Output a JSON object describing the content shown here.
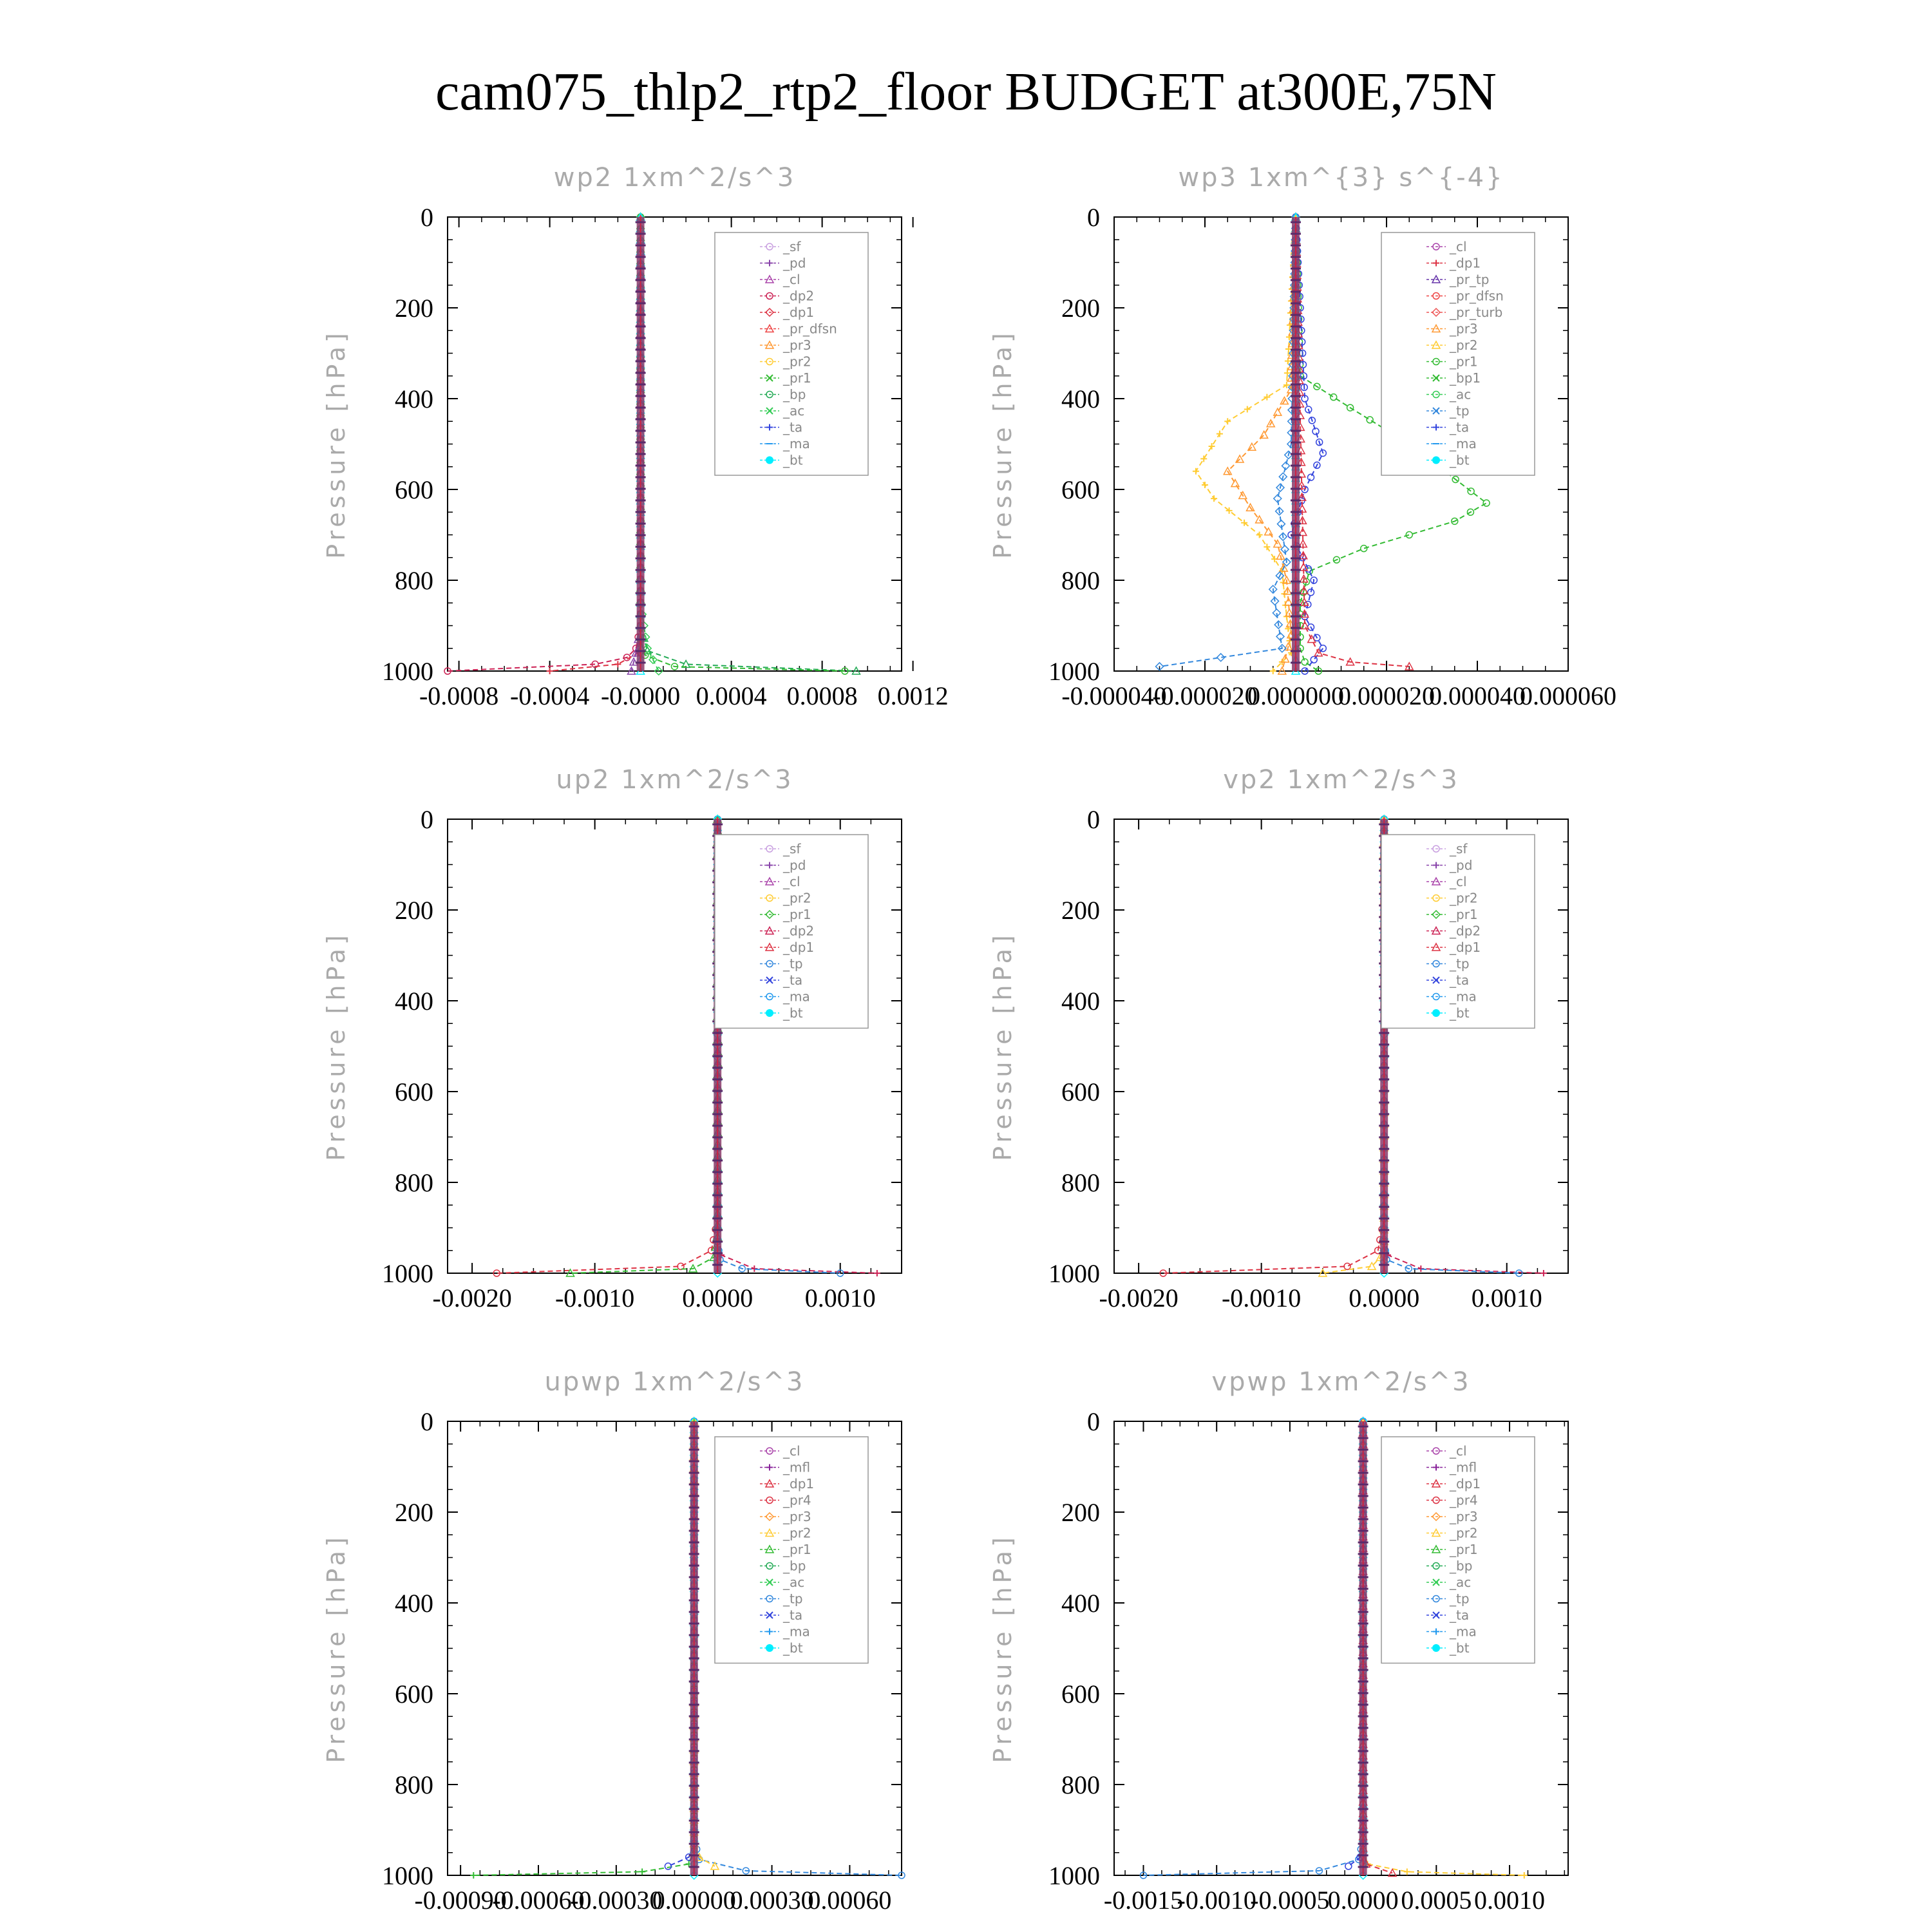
{
  "figure_title": "cam075_thlp2_rtp2_floor  BUDGET at300E,75N",
  "colors": {
    "_sf": "#c9a0e0",
    "_pd": "#8844aa",
    "_cl": "#aa44aa",
    "_dp2": "#cc2255",
    "_dp1": "#dd3344",
    "_pr_dfsn": "#ee4444",
    "_pr_tp": "#6633aa",
    "_pr_turb": "#ee5555",
    "_pr4": "#dd3344",
    "_pr3": "#ff9933",
    "_pr2": "#ffcc33",
    "_pr1": "#33bb33",
    "_bp": "#22aa55",
    "_bp1": "#33bb33",
    "_ac": "#33cc55",
    "_tp": "#3388dd",
    "_ta": "#3344dd",
    "_ma": "#2299ee",
    "_bt": "#00eeff",
    "_mfl": "#882299"
  },
  "chart_data": [
    {
      "type": "line",
      "title": "wp2  1xm^2/s^3",
      "ylabel": "Pressure [hPa]",
      "ylim": [
        1000,
        0
      ],
      "yticks": [
        0,
        200,
        400,
        600,
        800,
        1000
      ],
      "xlim": [
        -0.00085,
        0.00115
      ],
      "xticks": [
        -0.0008,
        -0.0004,
        0.0,
        0.0004,
        0.0008,
        0.0012
      ],
      "xtick_labels": [
        "-0.0008",
        "-0.0004",
        "-0.0000",
        "0.0004",
        "0.0008",
        "0.0012"
      ],
      "legend": [
        "_sf",
        "_pd",
        "_cl",
        "_dp2",
        "_dp1",
        "_pr_dfsn",
        "_pr3",
        "_pr2",
        "_pr1",
        "_bp",
        "_ac",
        "_ta",
        "_ma",
        "_bt"
      ],
      "series": [
        {
          "name": "_dp2",
          "x": [
            0,
            0,
            -2e-05,
            -6e-05,
            -0.0002,
            -0.00085
          ],
          "y": [
            0,
            900,
            950,
            970,
            985,
            1000
          ]
        },
        {
          "name": "_dp1",
          "x": [
            0,
            0,
            -1e-05,
            -0.0001,
            -0.0004
          ],
          "y": [
            0,
            920,
            960,
            985,
            1000
          ]
        },
        {
          "name": "_bp",
          "x": [
            0,
            0,
            3e-05,
            0.0002,
            0.00095
          ],
          "y": [
            0,
            900,
            955,
            985,
            1000
          ]
        },
        {
          "name": "_pr1",
          "x": [
            0,
            0,
            2e-05,
            0.00015,
            0.0009
          ],
          "y": [
            0,
            930,
            965,
            990,
            1000
          ]
        },
        {
          "name": "_ac",
          "x": [
            0,
            0,
            3e-05,
            8e-05
          ],
          "y": [
            0,
            850,
            950,
            1000
          ]
        },
        {
          "name": "_pd",
          "x": [
            0,
            0,
            -2e-05,
            -4e-05
          ],
          "y": [
            0,
            900,
            960,
            1000
          ]
        },
        {
          "name": "_bt",
          "x": [
            0,
            0,
            0
          ],
          "y": [
            0,
            500,
            1000
          ]
        }
      ]
    },
    {
      "type": "line",
      "title": "wp3  1xm^{3} s^{-4}",
      "ylabel": "Pressure [hPa]",
      "ylim": [
        1000,
        0
      ],
      "yticks": [
        0,
        200,
        400,
        600,
        800,
        1000
      ],
      "xlim": [
        -4e-05,
        6e-05
      ],
      "xticks": [
        -4e-05,
        -2e-05,
        0.0,
        2e-05,
        4e-05,
        6e-05
      ],
      "xtick_labels": [
        "-0.000040",
        "-0.000020",
        "0.000000",
        "0.000020",
        "0.000040",
        "0.000060"
      ],
      "legend": [
        "_cl",
        "_dp1",
        "_pr_tp",
        "_pr_dfsn",
        "_pr_turb",
        "_pr3",
        "_pr2",
        "_pr1",
        "_bp1",
        "_ac",
        "_tp",
        "_ta",
        "_ma",
        "_bt"
      ],
      "series": [
        {
          "name": "_bp1",
          "x": [
            0,
            1e-06,
            1.2e-05,
            2.5e-05,
            4.2e-05,
            3.5e-05,
            1.5e-05,
            3e-06,
            1e-06,
            1e-06,
            2e-06,
            5e-06
          ],
          "y": [
            0,
            350,
            420,
            500,
            630,
            670,
            730,
            780,
            850,
            950,
            980,
            1000
          ]
        },
        {
          "name": "_pr2",
          "x": [
            0,
            -2e-06,
            -1.5e-05,
            -2.2e-05,
            -1.8e-05,
            -8e-06,
            -3e-06,
            -2e-06,
            -1e-06,
            -5e-06
          ],
          "y": [
            0,
            370,
            450,
            560,
            620,
            700,
            780,
            880,
            960,
            1000
          ]
        },
        {
          "name": "_pr3",
          "x": [
            0,
            -1e-06,
            -7e-06,
            -1.5e-05,
            -1e-05,
            -4e-06,
            -2e-06,
            -1e-06,
            -3e-06
          ],
          "y": [
            0,
            380,
            480,
            560,
            640,
            720,
            800,
            920,
            1000
          ]
        },
        {
          "name": "_ta",
          "x": [
            0,
            2e-06,
            6e-06,
            2e-06,
            -1e-06,
            4e-06,
            2e-06,
            6e-06,
            2e-06
          ],
          "y": [
            0,
            400,
            520,
            600,
            700,
            800,
            880,
            950,
            1000
          ]
        },
        {
          "name": "_tp",
          "x": [
            0,
            -1e-06,
            -4e-06,
            -2e-06,
            -5e-06,
            -3e-06,
            -3e-05
          ],
          "y": [
            0,
            500,
            620,
            760,
            820,
            950,
            990
          ]
        },
        {
          "name": "_dp1",
          "x": [
            0,
            2e-06,
            5e-06,
            1.2e-05,
            2.5e-05
          ],
          "y": [
            0,
            900,
            960,
            980,
            990
          ]
        },
        {
          "name": "_bt",
          "x": [
            0,
            0,
            0
          ],
          "y": [
            0,
            500,
            1000
          ]
        }
      ]
    },
    {
      "type": "line",
      "title": "up2  1xm^2/s^3",
      "ylabel": "Pressure [hPa]",
      "ylim": [
        1000,
        0
      ],
      "yticks": [
        0,
        200,
        400,
        600,
        800,
        1000
      ],
      "xlim": [
        -0.0022,
        0.0015
      ],
      "xticks": [
        -0.002,
        -0.001,
        0.0,
        0.001
      ],
      "xtick_labels": [
        "-0.0020",
        "-0.0010",
        "0.0000",
        "0.0010"
      ],
      "legend": [
        "_sf",
        "_pd",
        "_cl",
        "_pr2",
        "_pr1",
        "_dp2",
        "_dp1",
        "_tp",
        "_ta",
        "_ma",
        "_bt"
      ],
      "series": [
        {
          "name": "_dp1",
          "x": [
            0,
            0,
            -5e-05,
            -0.0003,
            -0.0018
          ],
          "y": [
            0,
            880,
            950,
            985,
            1000
          ]
        },
        {
          "name": "_dp2",
          "x": [
            0,
            0,
            3e-05,
            0.0003,
            0.0013
          ],
          "y": [
            0,
            900,
            960,
            990,
            1000
          ]
        },
        {
          "name": "_pr1",
          "x": [
            0,
            0,
            -3e-05,
            -0.0002,
            -0.0012
          ],
          "y": [
            0,
            920,
            965,
            990,
            1000
          ]
        },
        {
          "name": "_tp",
          "x": [
            0,
            0,
            2e-05,
            0.0002,
            0.001
          ],
          "y": [
            0,
            930,
            970,
            990,
            1000
          ]
        },
        {
          "name": "_bt",
          "x": [
            0,
            0,
            0
          ],
          "y": [
            0,
            500,
            1000
          ]
        }
      ]
    },
    {
      "type": "line",
      "title": "vp2  1xm^2/s^3",
      "ylabel": "Pressure [hPa]",
      "ylim": [
        1000,
        0
      ],
      "yticks": [
        0,
        200,
        400,
        600,
        800,
        1000
      ],
      "xlim": [
        -0.0022,
        0.0015
      ],
      "xticks": [
        -0.002,
        -0.001,
        0.0,
        0.001
      ],
      "xtick_labels": [
        "-0.0020",
        "-0.0010",
        "0.0000",
        "0.0010"
      ],
      "legend": [
        "_sf",
        "_pd",
        "_cl",
        "_pr2",
        "_pr1",
        "_dp2",
        "_dp1",
        "_tp",
        "_ta",
        "_ma",
        "_bt"
      ],
      "series": [
        {
          "name": "_dp1",
          "x": [
            0,
            0,
            -5e-05,
            -0.0003,
            -0.0018
          ],
          "y": [
            0,
            880,
            950,
            985,
            1000
          ]
        },
        {
          "name": "_dp2",
          "x": [
            0,
            0,
            3e-05,
            0.0003,
            0.0013
          ],
          "y": [
            0,
            900,
            960,
            990,
            1000
          ]
        },
        {
          "name": "_pr2",
          "x": [
            0,
            0,
            -3e-05,
            -0.0001,
            -0.0005
          ],
          "y": [
            0,
            930,
            965,
            985,
            1000
          ]
        },
        {
          "name": "_tp",
          "x": [
            0,
            0,
            2e-05,
            0.0002,
            0.0011
          ],
          "y": [
            0,
            930,
            970,
            990,
            1000
          ]
        },
        {
          "name": "_bt",
          "x": [
            0,
            0,
            0
          ],
          "y": [
            0,
            500,
            1000
          ]
        }
      ]
    },
    {
      "type": "line",
      "title": "upwp  1xm^2/s^3",
      "ylabel": "Pressure [hPa]",
      "ylim": [
        1000,
        0
      ],
      "yticks": [
        0,
        200,
        400,
        600,
        800,
        1000
      ],
      "xlim": [
        -0.00095,
        0.0008
      ],
      "xticks": [
        -0.0009,
        -0.0006,
        -0.0003,
        0.0,
        0.0003,
        0.0006
      ],
      "xtick_labels": [
        "-0.00090",
        "-0.00060",
        "-0.00030",
        "0.00000",
        "0.00030",
        "0.00060"
      ],
      "legend": [
        "_cl",
        "_mfl",
        "_dp1",
        "_pr4",
        "_pr3",
        "_pr2",
        "_pr1",
        "_bp",
        "_ac",
        "_tp",
        "_ta",
        "_ma",
        "_bt"
      ],
      "series": [
        {
          "name": "_tp",
          "x": [
            0,
            0,
            2e-05,
            0.0002,
            0.0008
          ],
          "y": [
            0,
            920,
            965,
            990,
            1000
          ]
        },
        {
          "name": "_pr1",
          "x": [
            0,
            0,
            -2e-05,
            -0.0002,
            -0.00085
          ],
          "y": [
            0,
            940,
            975,
            992,
            1000
          ]
        },
        {
          "name": "_pr2",
          "x": [
            0,
            0,
            2e-05,
            8e-05
          ],
          "y": [
            0,
            930,
            960,
            980
          ]
        },
        {
          "name": "_ta",
          "x": [
            0,
            0,
            -2e-05,
            -0.0001
          ],
          "y": [
            0,
            930,
            960,
            980
          ]
        },
        {
          "name": "_bt",
          "x": [
            0,
            0,
            0
          ],
          "y": [
            0,
            500,
            1000
          ]
        }
      ]
    },
    {
      "type": "line",
      "title": "vpwp  1xm^2/s^3",
      "ylabel": "Pressure [hPa]",
      "ylim": [
        1000,
        0
      ],
      "yticks": [
        0,
        200,
        400,
        600,
        800,
        1000
      ],
      "xlim": [
        -0.0017,
        0.0014
      ],
      "xticks": [
        -0.0015,
        -0.001,
        -0.0005,
        0.0,
        0.0005,
        0.001
      ],
      "xtick_labels": [
        "-0.0015",
        "-0.0010",
        "-0.0005",
        "0.0000",
        "0.0005",
        "0.0010"
      ],
      "legend": [
        "_cl",
        "_mfl",
        "_dp1",
        "_pr4",
        "_pr3",
        "_pr2",
        "_pr1",
        "_bp",
        "_ac",
        "_tp",
        "_ta",
        "_ma",
        "_bt"
      ],
      "series": [
        {
          "name": "_tp",
          "x": [
            0,
            0,
            -3e-05,
            -0.0003,
            -0.0015
          ],
          "y": [
            0,
            920,
            965,
            990,
            1000
          ]
        },
        {
          "name": "_pr2",
          "x": [
            0,
            0,
            3e-05,
            0.0003,
            0.0011
          ],
          "y": [
            0,
            940,
            975,
            992,
            1000
          ]
        },
        {
          "name": "_pr4",
          "x": [
            0,
            0,
            2e-05,
            0.0002
          ],
          "y": [
            0,
            940,
            975,
            995
          ]
        },
        {
          "name": "_ta",
          "x": [
            0,
            0,
            -2e-05,
            -0.0001
          ],
          "y": [
            0,
            930,
            960,
            980
          ]
        },
        {
          "name": "_bt",
          "x": [
            0,
            0,
            0
          ],
          "y": [
            0,
            500,
            1000
          ]
        }
      ]
    }
  ]
}
